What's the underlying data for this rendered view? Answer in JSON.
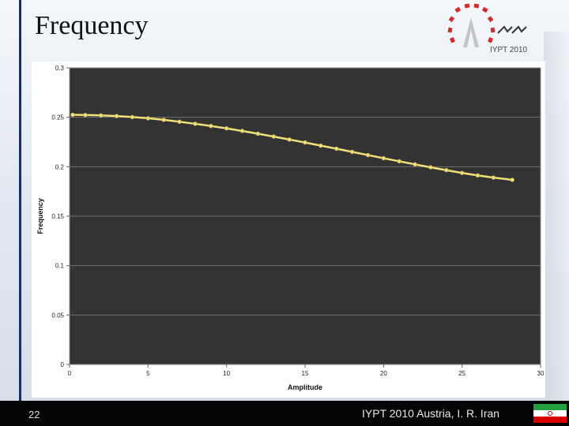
{
  "slide": {
    "title": "Frequency",
    "page_number": "22",
    "footer_text": "IYPT 2010 Austria, I. R. Iran",
    "logo_text": "IYPT 2010"
  },
  "colors": {
    "plot_bg": "#333333",
    "series": "#f0e27a",
    "gridline": "#707070",
    "footer_bg": "#050505",
    "accent_rule": "#1d2a6b"
  },
  "chart_data": {
    "type": "scatter",
    "title": "",
    "xlabel": "Amplitude",
    "ylabel": "Frequency",
    "xlim": [
      0,
      30
    ],
    "ylim": [
      0,
      0.3
    ],
    "xticks": [
      "0",
      "5",
      "10",
      "15",
      "20",
      "25",
      "30"
    ],
    "yticks": [
      "0",
      "0.05",
      "0.1",
      "0.15",
      "0.2",
      "0.25",
      "0.3"
    ],
    "grid": true,
    "legend": "none",
    "series": [
      {
        "points": [
          [
            0.2,
            0.2525
          ],
          [
            1.0,
            0.2523
          ],
          [
            2.0,
            0.2519
          ],
          [
            3.0,
            0.2512
          ],
          [
            4.0,
            0.2502
          ],
          [
            5.0,
            0.249
          ],
          [
            6.0,
            0.2474
          ],
          [
            7.0,
            0.2455
          ],
          [
            8.0,
            0.2434
          ],
          [
            9.0,
            0.2412
          ],
          [
            10.0,
            0.2388
          ],
          [
            11.0,
            0.2362
          ],
          [
            12.0,
            0.2334
          ],
          [
            13.0,
            0.2305
          ],
          [
            14.0,
            0.2275
          ],
          [
            15.0,
            0.2245
          ],
          [
            16.0,
            0.2213
          ],
          [
            17.0,
            0.2182
          ],
          [
            18.0,
            0.215
          ],
          [
            19.0,
            0.2118
          ],
          [
            20.0,
            0.2086
          ],
          [
            21.0,
            0.2055
          ],
          [
            22.0,
            0.2024
          ],
          [
            23.0,
            0.1994
          ],
          [
            24.0,
            0.1965
          ],
          [
            25.0,
            0.1937
          ],
          [
            26.0,
            0.1912
          ],
          [
            27.0,
            0.189
          ],
          [
            28.2,
            0.1867
          ]
        ]
      }
    ]
  }
}
